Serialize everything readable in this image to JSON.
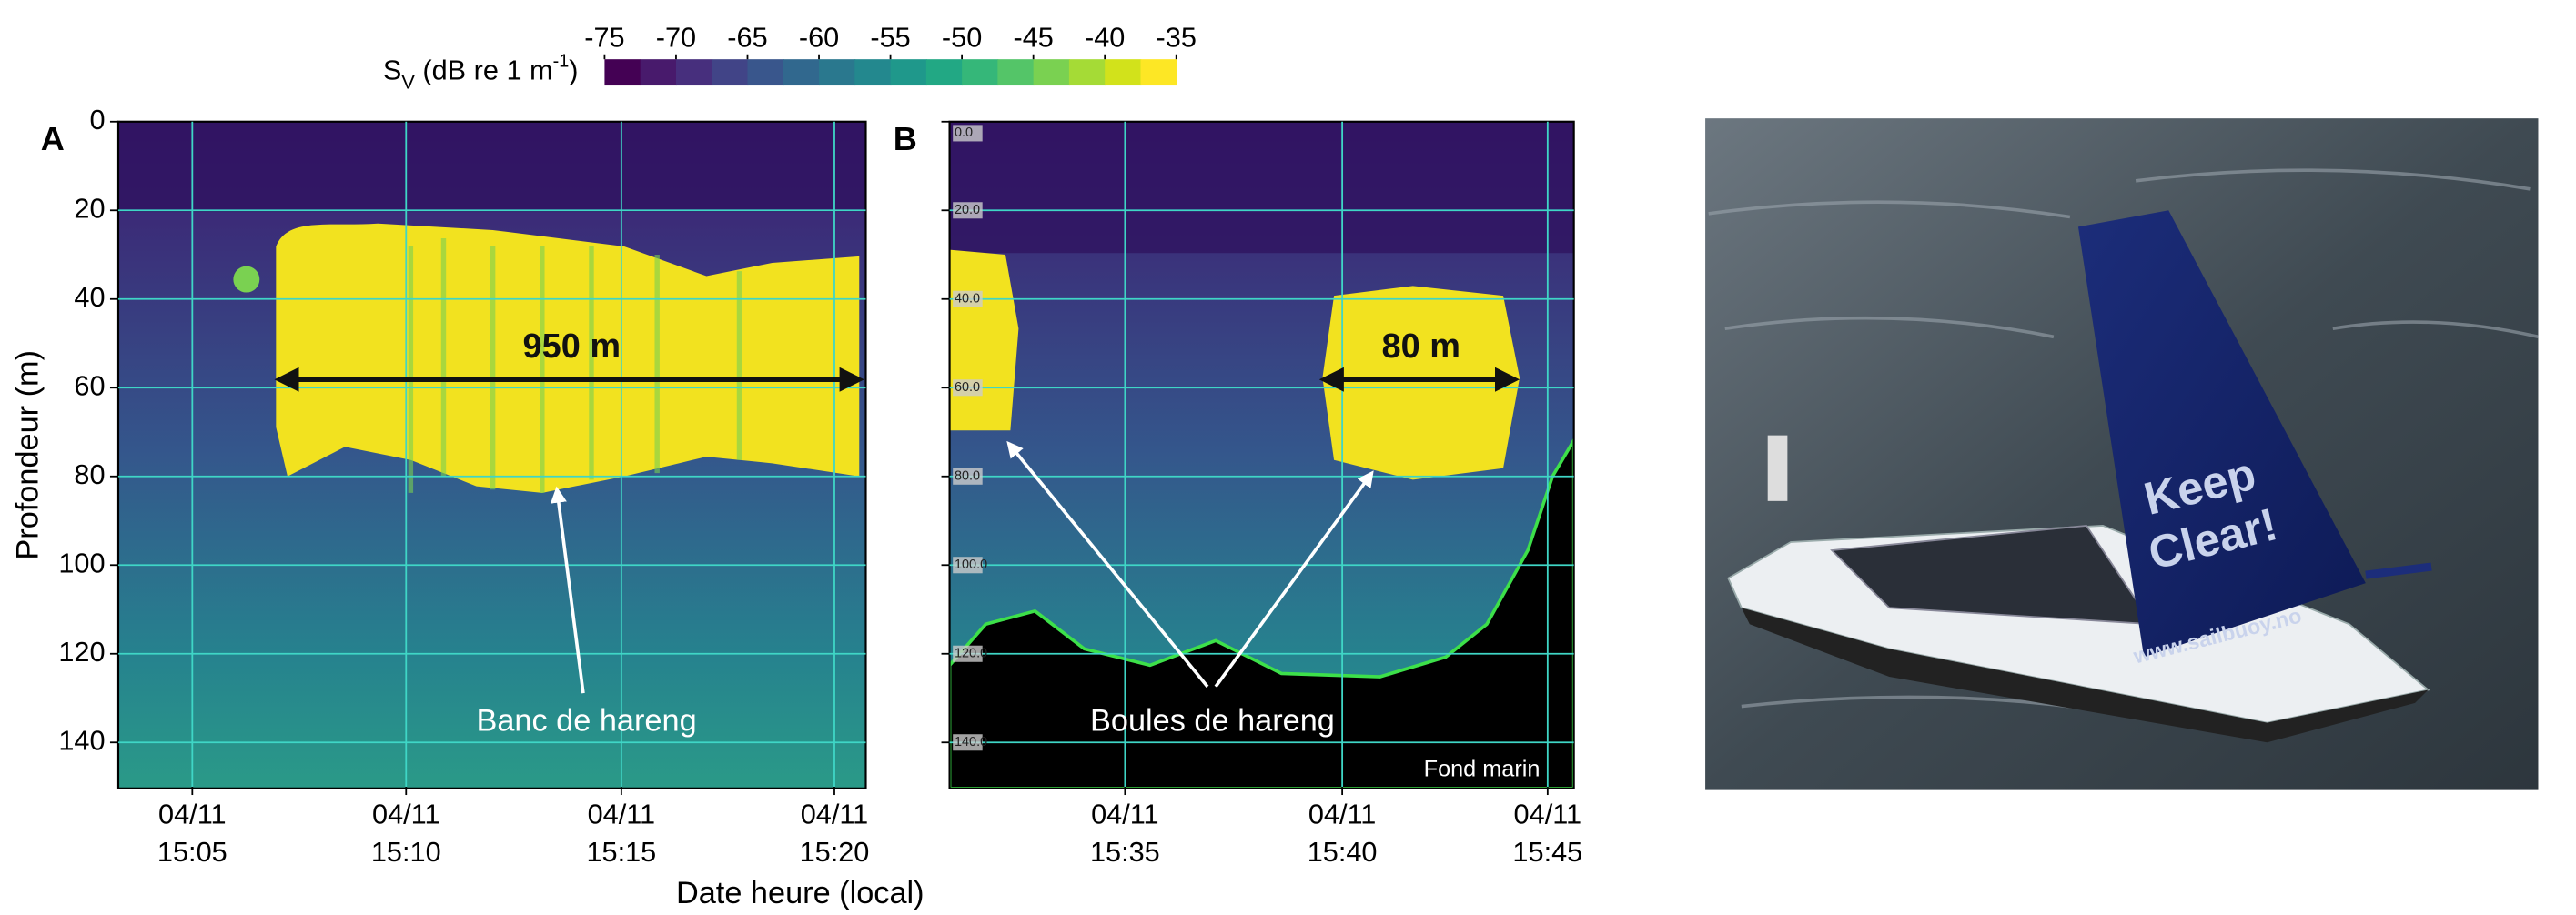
{
  "figure": {
    "x_label": "Date heure (local)",
    "colorbar": {
      "label_parts": [
        "S",
        "V",
        " (dB re 1 m",
        "-1",
        ")"
      ],
      "clim": [
        -75,
        -35
      ],
      "ticks": [
        -75,
        -70,
        -65,
        -60,
        -55,
        -50,
        -45,
        -40,
        -35
      ],
      "colors": [
        "#440154",
        "#481a6c",
        "#472f7d",
        "#414487",
        "#39568c",
        "#31688e",
        "#2a788e",
        "#23888e",
        "#1f988b",
        "#22a884",
        "#35b779",
        "#54c568",
        "#7ad151",
        "#a5db36",
        "#d2e21b",
        "#fde725"
      ]
    }
  },
  "chart_data": [
    {
      "type": "heatmap",
      "panel": "A",
      "y_label": "Profondeur (m)",
      "ylim": [
        0,
        150
      ],
      "y_inverted": true,
      "yticks": [
        0,
        20,
        40,
        60,
        80,
        100,
        120,
        140
      ],
      "grid": true,
      "grid_color": "#3fd6c6",
      "x_tick_labels": [
        "04/11 15:05",
        "04/11 15:10",
        "04/11 15:15",
        "04/11 15:20"
      ],
      "annotations": [
        "950 m",
        "Banc de hareng"
      ]
    },
    {
      "type": "heatmap",
      "panel": "B",
      "ylim": [
        0,
        150
      ],
      "y_inverted": true,
      "yticks": [
        {
          "value": 0,
          "label": "0.0"
        },
        {
          "value": 20,
          "label": "20.0"
        },
        {
          "value": 40,
          "label": "40.0"
        },
        {
          "value": 60,
          "label": "60.0"
        },
        {
          "value": 80,
          "label": "80.0"
        },
        {
          "value": 100,
          "label": "100.0"
        },
        {
          "value": 120,
          "label": "120.0"
        },
        {
          "value": 140,
          "label": "140.0"
        }
      ],
      "grid": true,
      "grid_color": "#3fd6c6",
      "x_tick_labels": [
        "04/11 15:35",
        "04/11 15:40",
        "04/11 15:45"
      ],
      "annotations": [
        "80 m",
        "Boules de hareng",
        "Fond marin"
      ]
    }
  ],
  "photo": {
    "sail_lines": [
      "Keep",
      "Clear!"
    ],
    "sail_url": "www.sailbuoy.no"
  }
}
